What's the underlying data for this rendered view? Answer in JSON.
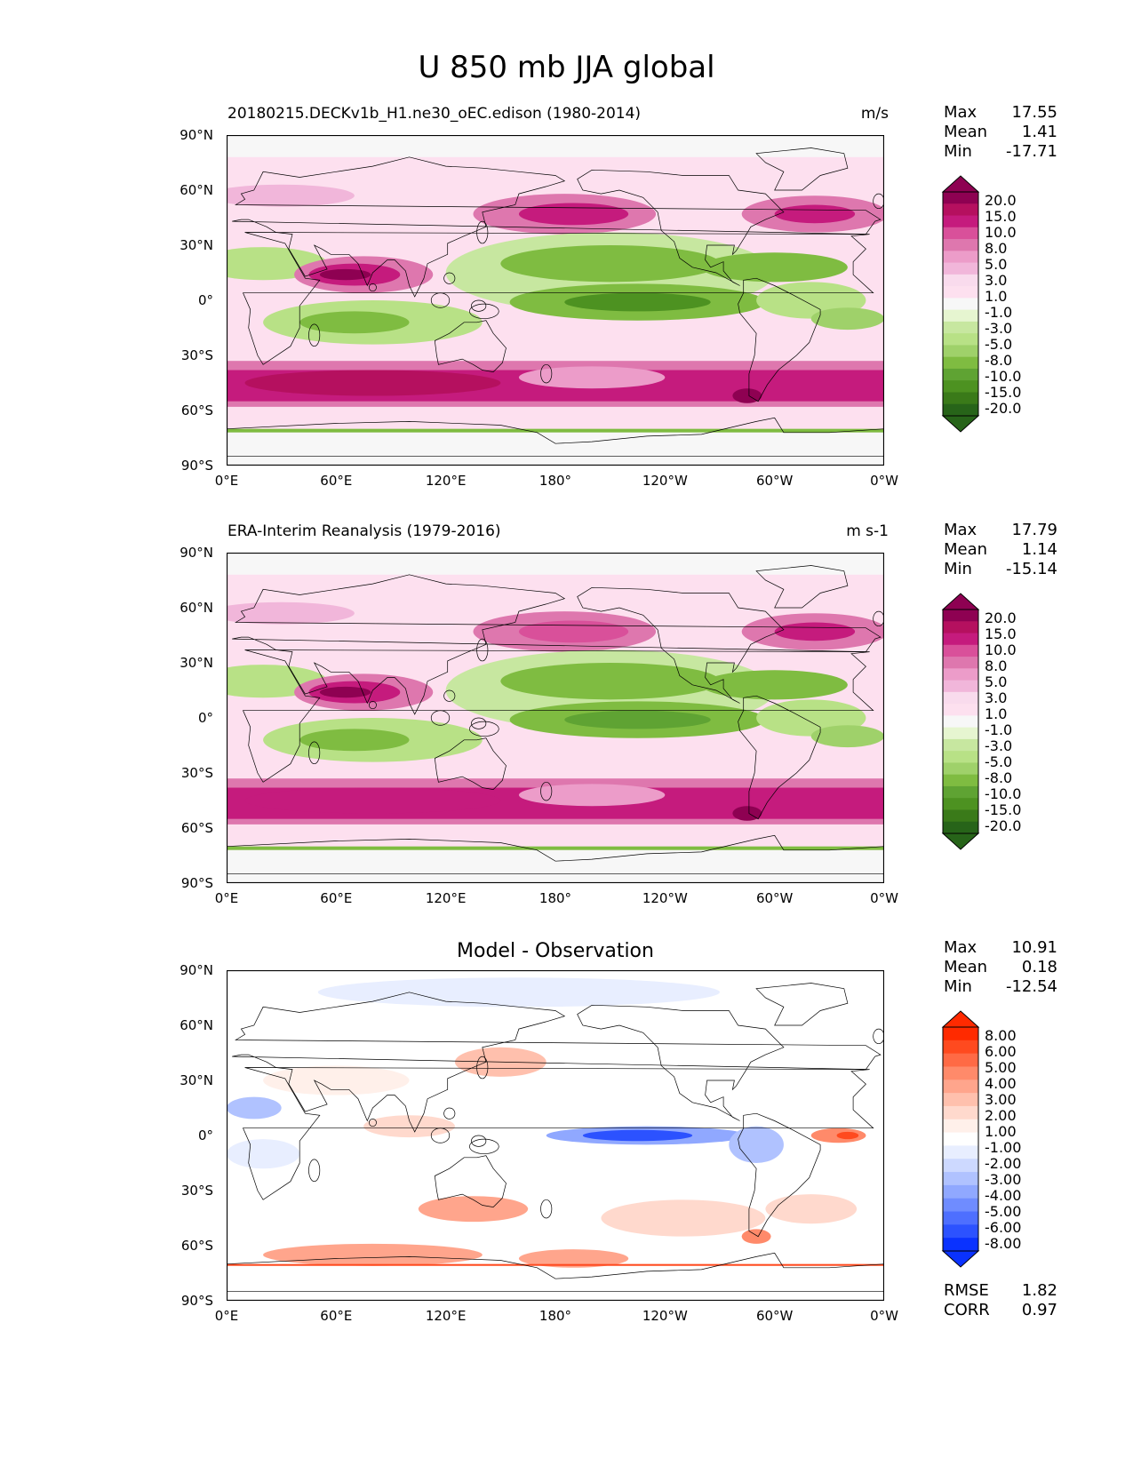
{
  "figure": {
    "title": "U 850 mb JJA global"
  },
  "axes": {
    "y_ticks": [
      "90°N",
      "60°N",
      "30°N",
      "0°",
      "30°S",
      "60°S",
      "90°S"
    ],
    "x_ticks": [
      "0°E",
      "60°E",
      "120°E",
      "180°",
      "120°W",
      "60°W",
      "0°W"
    ]
  },
  "panels": [
    {
      "title_left": "20180215.DECKv1b_H1.ne30_oEC.edison (1980-2014)",
      "title_right": "m/s",
      "stats": [
        {
          "label": "Max",
          "value": "17.55"
        },
        {
          "label": "Mean",
          "value": "1.41"
        },
        {
          "label": "Min",
          "value": "-17.71"
        }
      ],
      "colorbar": {
        "labels": [
          "20.0",
          "15.0",
          "10.0",
          "8.0",
          "5.0",
          "3.0",
          "1.0",
          "-1.0",
          "-3.0",
          "-5.0",
          "-8.0",
          "-10.0",
          "-15.0",
          "-20.0"
        ],
        "colors": [
          "#8e0152",
          "#b5105f",
          "#c51b7d",
          "#d9509a",
          "#de77ae",
          "#ec9cc9",
          "#f1b6da",
          "#f9dbed",
          "#fde0ef",
          "#f7f7f7",
          "#e6f5d0",
          "#c7e7a0",
          "#b8e186",
          "#9fd16a",
          "#7fbc41",
          "#5fa333",
          "#4d9221",
          "#3a7a19",
          "#276419"
        ]
      }
    },
    {
      "title_left": "ERA-Interim Reanalysis (1979-2016)",
      "title_right": "m s-1",
      "stats": [
        {
          "label": "Max",
          "value": "17.79"
        },
        {
          "label": "Mean",
          "value": "1.14"
        },
        {
          "label": "Min",
          "value": "-15.14"
        }
      ],
      "colorbar": {
        "labels": [
          "20.0",
          "15.0",
          "10.0",
          "8.0",
          "5.0",
          "3.0",
          "1.0",
          "-1.0",
          "-3.0",
          "-5.0",
          "-8.0",
          "-10.0",
          "-15.0",
          "-20.0"
        ],
        "colors": [
          "#8e0152",
          "#b5105f",
          "#c51b7d",
          "#d9509a",
          "#de77ae",
          "#ec9cc9",
          "#f1b6da",
          "#f9dbed",
          "#fde0ef",
          "#f7f7f7",
          "#e6f5d0",
          "#c7e7a0",
          "#b8e186",
          "#9fd16a",
          "#7fbc41",
          "#5fa333",
          "#4d9221",
          "#3a7a19",
          "#276419"
        ]
      }
    },
    {
      "title_center": "Model - Observation",
      "stats": [
        {
          "label": "Max",
          "value": "10.91"
        },
        {
          "label": "Mean",
          "value": "0.18"
        },
        {
          "label": "Min",
          "value": "-12.54"
        }
      ],
      "colorbar": {
        "labels": [
          "8.00",
          "6.00",
          "5.00",
          "4.00",
          "3.00",
          "2.00",
          "1.00",
          "-1.00",
          "-2.00",
          "-3.00",
          "-4.00",
          "-5.00",
          "-6.00",
          "-8.00"
        ],
        "colors": [
          "#ff2a00",
          "#ff4a1f",
          "#ff6a45",
          "#ff8a6a",
          "#ffa58c",
          "#ffc0ad",
          "#ffd9cd",
          "#fff0ea",
          "#ffffff",
          "#e8eeff",
          "#cdd9ff",
          "#b0c2ff",
          "#90a8ff",
          "#6f8cff",
          "#4e6fff",
          "#2c52ff",
          "#0a32ff"
        ]
      },
      "extra": [
        {
          "label": "RMSE",
          "value": "1.82"
        },
        {
          "label": "CORR",
          "value": "0.97"
        }
      ]
    }
  ],
  "chart_data": [
    {
      "type": "heatmap",
      "title": "20180215.DECKv1b_H1.ne30_oEC.edison (1980-2014)",
      "units": "m/s",
      "variable": "U 850 mb JJA",
      "x_range": [
        0,
        360
      ],
      "y_range": [
        -90,
        90
      ],
      "levels": [
        -20,
        -15,
        -10,
        -8,
        -5,
        -3,
        -1,
        1,
        3,
        5,
        8,
        10,
        15,
        20
      ],
      "zonal_features": [
        {
          "lat": 45,
          "lon_range": [
            140,
            220
          ],
          "value": 10
        },
        {
          "lat": 45,
          "lon_range": [
            300,
            345
          ],
          "value": 10
        },
        {
          "lat": 15,
          "lon_range": [
            45,
            100
          ],
          "value": 15
        },
        {
          "lat": 5,
          "lon_range": [
            150,
            270
          ],
          "value": -10
        },
        {
          "lat": -10,
          "lon_range": [
            40,
            120
          ],
          "value": -10
        },
        {
          "lat": -45,
          "lon_range": [
            0,
            360
          ],
          "value": 15
        }
      ],
      "stats": {
        "max": 17.55,
        "mean": 1.41,
        "min": -17.71
      }
    },
    {
      "type": "heatmap",
      "title": "ERA-Interim Reanalysis (1979-2016)",
      "units": "m s-1",
      "variable": "U 850 mb JJA",
      "x_range": [
        0,
        360
      ],
      "y_range": [
        -90,
        90
      ],
      "levels": [
        -20,
        -15,
        -10,
        -8,
        -5,
        -3,
        -1,
        1,
        3,
        5,
        8,
        10,
        15,
        20
      ],
      "zonal_features": [
        {
          "lat": 45,
          "lon_range": [
            140,
            220
          ],
          "value": 8
        },
        {
          "lat": 15,
          "lon_range": [
            45,
            90
          ],
          "value": 15
        },
        {
          "lat": 5,
          "lon_range": [
            150,
            260
          ],
          "value": -8
        },
        {
          "lat": -10,
          "lon_range": [
            40,
            120
          ],
          "value": -8
        },
        {
          "lat": -45,
          "lon_range": [
            0,
            360
          ],
          "value": 12
        }
      ],
      "stats": {
        "max": 17.79,
        "mean": 1.14,
        "min": -15.14
      }
    },
    {
      "type": "heatmap",
      "title": "Model - Observation",
      "variable": "U 850 mb JJA difference",
      "x_range": [
        0,
        360
      ],
      "y_range": [
        -90,
        90
      ],
      "levels": [
        -8,
        -6,
        -5,
        -4,
        -3,
        -2,
        -1,
        1,
        2,
        3,
        4,
        5,
        6,
        8
      ],
      "zonal_features": [
        {
          "lat": 0,
          "lon_range": [
            200,
            270
          ],
          "value": -6
        },
        {
          "lat": 0,
          "lon_range": [
            320,
            350
          ],
          "value": 5
        },
        {
          "lat": -40,
          "lon_range": [
            120,
            150
          ],
          "value": 3
        },
        {
          "lat": -70,
          "lon_range": [
            30,
            200
          ],
          "value": 3
        },
        {
          "lat": 75,
          "lon_range": [
            30,
            270
          ],
          "value": -2
        }
      ],
      "stats": {
        "max": 10.91,
        "mean": 0.18,
        "min": -12.54,
        "rmse": 1.82,
        "corr": 0.97
      }
    }
  ]
}
